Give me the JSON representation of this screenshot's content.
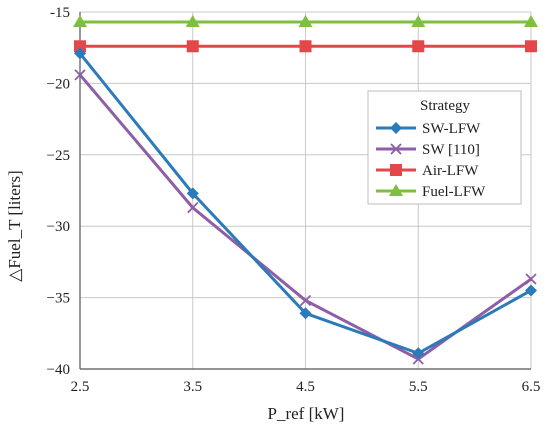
{
  "chart_data": {
    "type": "line",
    "xlabel": "P_ref [kW]",
    "ylabel": "△Fuel_T [liters]",
    "x": [
      2.5,
      3.5,
      4.5,
      5.5,
      6.5
    ],
    "xlim": [
      2.5,
      6.5
    ],
    "ylim": [
      -40,
      -15
    ],
    "xticks": [
      "2.5",
      "3.5",
      "4.5",
      "5.5",
      "6.5"
    ],
    "yticks": [
      "-15",
      "−20",
      "−25",
      "−30",
      "−35",
      "−40"
    ],
    "ytick_values": [
      -15,
      -20,
      -25,
      -30,
      -35,
      -40
    ],
    "grid": true,
    "legend": {
      "title": "Strategy",
      "placement": "right"
    },
    "series": [
      {
        "name": "SW-LFW",
        "color": "#2b7bba",
        "marker": "diamond",
        "values": [
          -17.9,
          -27.7,
          -36.1,
          -38.9,
          -34.5
        ]
      },
      {
        "name": "SW [110]",
        "color": "#8e5ea6",
        "marker": "x",
        "values": [
          -19.4,
          -28.7,
          -35.2,
          -39.3,
          -33.7
        ]
      },
      {
        "name": "Air-LFW",
        "color": "#e2474a",
        "marker": "square",
        "values": [
          -17.4,
          -17.4,
          -17.4,
          -17.4,
          -17.4
        ]
      },
      {
        "name": "Fuel-LFW",
        "color": "#7fbf3e",
        "marker": "triangle",
        "values": [
          -15.7,
          -15.7,
          -15.7,
          -15.7,
          -15.7
        ]
      }
    ]
  }
}
